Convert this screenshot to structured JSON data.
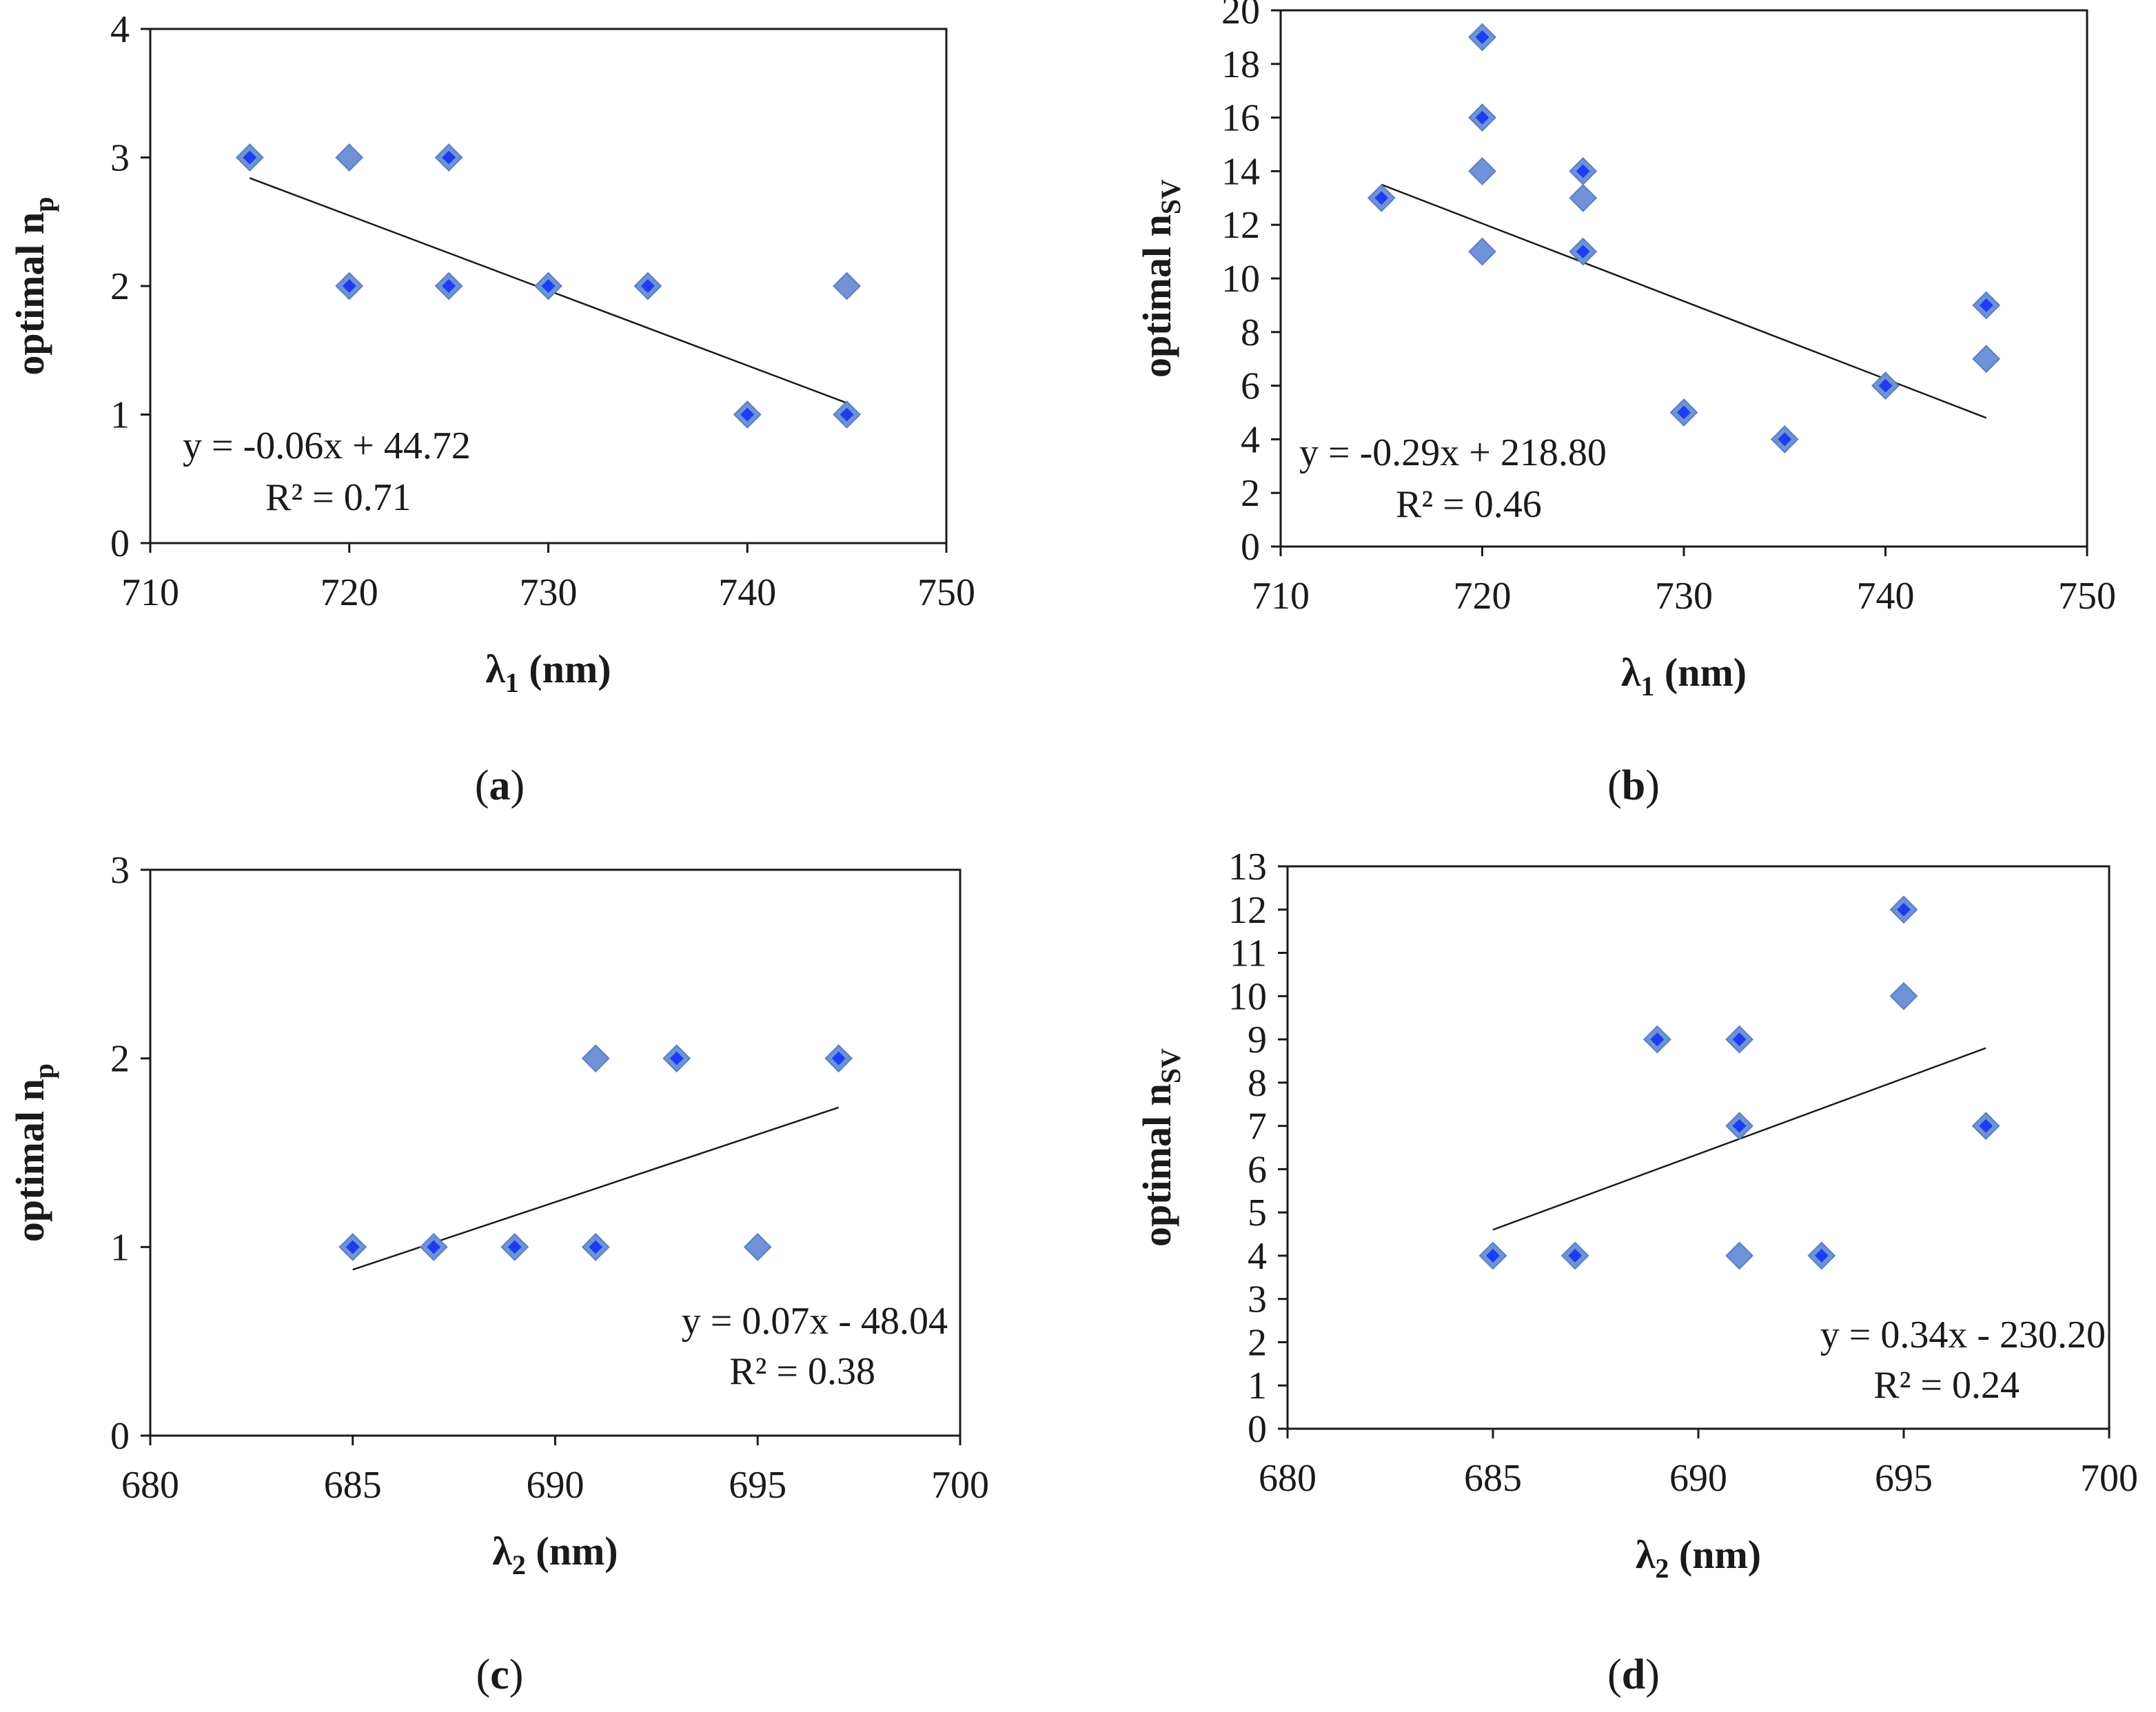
{
  "colors": {
    "marker_outer": "#6f93d6",
    "marker_inner": "#1b3ff0",
    "axis": "#1a1a1a",
    "trendline": "#1a1a1a"
  },
  "chart_data": [
    {
      "id": "a",
      "type": "scatter",
      "panel_label": "a",
      "xlabel": "λ",
      "xlabel_sub": "1",
      "xlabel_unit": "(nm)",
      "ylabel": "optimal n",
      "ylabel_sub": "p",
      "xlim": [
        710,
        750
      ],
      "ylim": [
        0,
        4
      ],
      "xticks": [
        710,
        720,
        730,
        740,
        750
      ],
      "yticks": [
        0,
        1,
        2,
        3,
        4
      ],
      "points": [
        {
          "x": 715,
          "y": 3,
          "dark": true
        },
        {
          "x": 720,
          "y": 3,
          "dark": false
        },
        {
          "x": 720,
          "y": 2,
          "dark": true
        },
        {
          "x": 725,
          "y": 3,
          "dark": true
        },
        {
          "x": 725,
          "y": 2,
          "dark": true
        },
        {
          "x": 730,
          "y": 2,
          "dark": true
        },
        {
          "x": 735,
          "y": 2,
          "dark": true
        },
        {
          "x": 740,
          "y": 1,
          "dark": true
        },
        {
          "x": 745,
          "y": 2,
          "dark": false
        },
        {
          "x": 745,
          "y": 1,
          "dark": true
        }
      ],
      "trendline": {
        "x": [
          715,
          745
        ],
        "y": [
          2.84,
          1.09
        ]
      },
      "equation": "y = -0.06x + 44.72",
      "r2": "R² = 0.71"
    },
    {
      "id": "b",
      "type": "scatter",
      "panel_label": "b",
      "xlabel": "λ",
      "xlabel_sub": "1",
      "xlabel_unit": "(nm)",
      "ylabel": "optimal n",
      "ylabel_sub": "SV",
      "xlim": [
        710,
        750
      ],
      "ylim": [
        0,
        20
      ],
      "xticks": [
        710,
        720,
        730,
        740,
        750
      ],
      "yticks": [
        0,
        2,
        4,
        6,
        8,
        10,
        12,
        14,
        16,
        18,
        20
      ],
      "points": [
        {
          "x": 715,
          "y": 13,
          "dark": true
        },
        {
          "x": 720,
          "y": 19,
          "dark": true
        },
        {
          "x": 720,
          "y": 16,
          "dark": true
        },
        {
          "x": 720,
          "y": 14,
          "dark": false
        },
        {
          "x": 720,
          "y": 11,
          "dark": false
        },
        {
          "x": 725,
          "y": 14,
          "dark": true
        },
        {
          "x": 725,
          "y": 13,
          "dark": false
        },
        {
          "x": 725,
          "y": 11,
          "dark": true
        },
        {
          "x": 730,
          "y": 5,
          "dark": true
        },
        {
          "x": 735,
          "y": 4,
          "dark": true
        },
        {
          "x": 740,
          "y": 6,
          "dark": true
        },
        {
          "x": 745,
          "y": 9,
          "dark": true
        },
        {
          "x": 745,
          "y": 7,
          "dark": false
        }
      ],
      "trendline": {
        "x": [
          715,
          745
        ],
        "y": [
          13.5,
          4.8
        ]
      },
      "equation": "y = -0.29x + 218.80",
      "r2": "R² = 0.46"
    },
    {
      "id": "c",
      "type": "scatter",
      "panel_label": "c",
      "xlabel": "λ",
      "xlabel_sub": "2",
      "xlabel_unit": "(nm)",
      "ylabel": "optimal n",
      "ylabel_sub": "p",
      "xlim": [
        680,
        700
      ],
      "ylim": [
        0,
        3
      ],
      "xticks": [
        680,
        685,
        690,
        695,
        700
      ],
      "yticks": [
        0,
        1,
        2,
        3
      ],
      "points": [
        {
          "x": 685,
          "y": 1,
          "dark": true
        },
        {
          "x": 687,
          "y": 1,
          "dark": true
        },
        {
          "x": 689,
          "y": 1,
          "dark": true
        },
        {
          "x": 691,
          "y": 1,
          "dark": true
        },
        {
          "x": 691,
          "y": 2,
          "dark": false
        },
        {
          "x": 693,
          "y": 2,
          "dark": true
        },
        {
          "x": 695,
          "y": 1,
          "dark": false
        },
        {
          "x": 697,
          "y": 2,
          "dark": true
        }
      ],
      "trendline": {
        "x": [
          685,
          697
        ],
        "y": [
          0.88,
          1.74
        ]
      },
      "equation": "y = 0.07x - 48.04",
      "r2": "R² = 0.38"
    },
    {
      "id": "d",
      "type": "scatter",
      "panel_label": "d",
      "xlabel": "λ",
      "xlabel_sub": "2",
      "xlabel_unit": "(nm)",
      "ylabel": "optimal n",
      "ylabel_sub": "SV",
      "xlim": [
        680,
        700
      ],
      "ylim": [
        0,
        13
      ],
      "xticks": [
        680,
        685,
        690,
        695,
        700
      ],
      "yticks": [
        0,
        1,
        2,
        3,
        4,
        5,
        6,
        7,
        8,
        9,
        10,
        11,
        12,
        13
      ],
      "points": [
        {
          "x": 685,
          "y": 4,
          "dark": true
        },
        {
          "x": 687,
          "y": 4,
          "dark": true
        },
        {
          "x": 689,
          "y": 9,
          "dark": true
        },
        {
          "x": 691,
          "y": 9,
          "dark": true
        },
        {
          "x": 691,
          "y": 7,
          "dark": true
        },
        {
          "x": 691,
          "y": 4,
          "dark": false
        },
        {
          "x": 693,
          "y": 4,
          "dark": true
        },
        {
          "x": 695,
          "y": 12,
          "dark": true
        },
        {
          "x": 695,
          "y": 10,
          "dark": false
        },
        {
          "x": 697,
          "y": 7,
          "dark": true
        }
      ],
      "trendline": {
        "x": [
          685,
          697
        ],
        "y": [
          4.6,
          8.8
        ]
      },
      "equation": "y = 0.34x - 230.20",
      "r2": "R² = 0.24"
    }
  ]
}
